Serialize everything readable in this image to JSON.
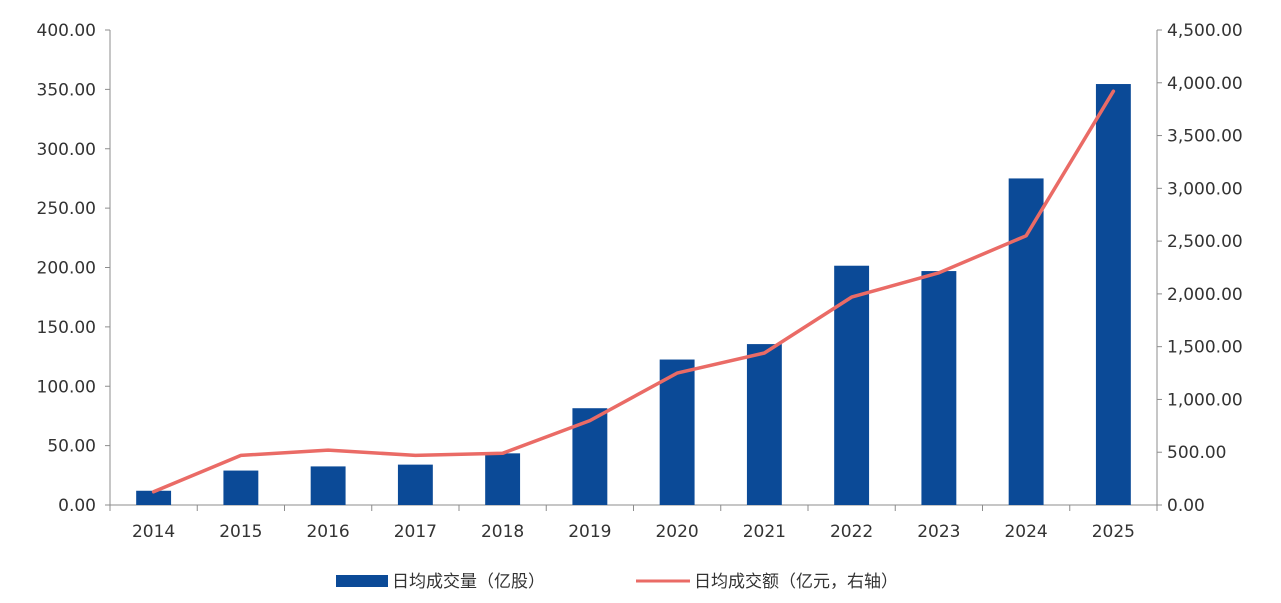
{
  "chart_data": {
    "type": "bar",
    "categories": [
      "2014",
      "2015",
      "2016",
      "2017",
      "2018",
      "2019",
      "2020",
      "2021",
      "2022",
      "2023",
      "2024",
      "2025"
    ],
    "series": [
      {
        "name": "日均成交量（亿股）",
        "type": "bar",
        "axis": "left",
        "color": "#0b4a97",
        "values": [
          12,
          29,
          32.5,
          34,
          43.5,
          81.5,
          122.5,
          135.5,
          201.5,
          197,
          275,
          354.5
        ]
      },
      {
        "name": "日均成交额（亿元，右轴）",
        "type": "line",
        "axis": "right",
        "color": "#ea6b66",
        "values": [
          125,
          470,
          520,
          470,
          490,
          800,
          1250,
          1440,
          1970,
          2200,
          2550,
          3920
        ]
      }
    ],
    "y_left": {
      "min": 0,
      "max": 400,
      "ticks": [
        "0.00",
        "50.00",
        "100.00",
        "150.00",
        "200.00",
        "250.00",
        "300.00",
        "350.00",
        "400.00"
      ]
    },
    "y_right": {
      "min": 0,
      "max": 4500,
      "ticks": [
        "0.00",
        "500.00",
        "1,000.00",
        "1,500.00",
        "2,000.00",
        "2,500.00",
        "3,000.00",
        "3,500.00",
        "4,000.00",
        "4,500.00"
      ]
    },
    "grid": false,
    "legend_position": "bottom-center"
  }
}
